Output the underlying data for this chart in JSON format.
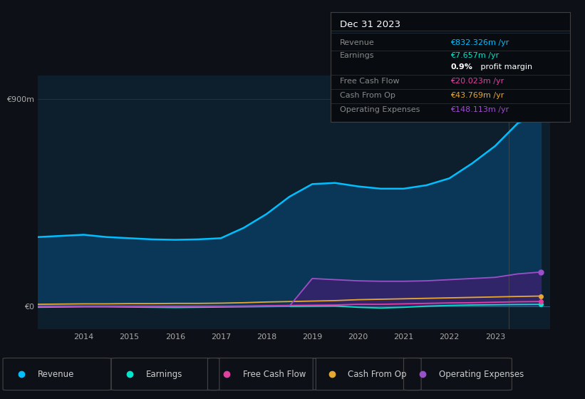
{
  "background_color": "#0d1117",
  "plot_bg_color": "#0d1f2d",
  "years": [
    2013.0,
    2013.5,
    2014.0,
    2014.5,
    2015.0,
    2015.5,
    2016.0,
    2016.5,
    2017.0,
    2017.5,
    2018.0,
    2018.5,
    2019.0,
    2019.5,
    2020.0,
    2020.5,
    2021.0,
    2021.5,
    2022.0,
    2022.5,
    2023.0,
    2023.5,
    2024.0
  ],
  "revenue": [
    300,
    305,
    310,
    300,
    295,
    290,
    288,
    290,
    295,
    340,
    400,
    475,
    530,
    535,
    520,
    510,
    510,
    525,
    555,
    620,
    695,
    795,
    832
  ],
  "earnings": [
    -5,
    -4,
    -3,
    -3,
    -4,
    -5,
    -6,
    -5,
    -4,
    -3,
    -2,
    -1,
    0,
    1,
    -5,
    -8,
    -5,
    0,
    3,
    5,
    6,
    7,
    7.657
  ],
  "free_cash_flow": [
    -2,
    -2,
    -1,
    -1,
    -2,
    -2,
    -2,
    -1,
    -1,
    0,
    2,
    3,
    4,
    5,
    8,
    8,
    10,
    12,
    14,
    15,
    17,
    19,
    20
  ],
  "cash_from_op": [
    8,
    9,
    10,
    10,
    11,
    11,
    12,
    12,
    13,
    15,
    18,
    20,
    22,
    24,
    28,
    30,
    32,
    34,
    36,
    38,
    40,
    42,
    43.769
  ],
  "operating_expenses": [
    0,
    0,
    0,
    0,
    0,
    0,
    0,
    0,
    0,
    0,
    0,
    0,
    120,
    115,
    110,
    108,
    108,
    110,
    115,
    120,
    125,
    140,
    148
  ],
  "revenue_color": "#00bfff",
  "earnings_color": "#00e5cc",
  "free_cash_flow_color": "#e040a0",
  "cash_from_op_color": "#e8a830",
  "operating_expenses_color": "#9b4fc8",
  "revenue_fill_color": "#0a3a5c",
  "operating_expenses_fill_color": "#3d1f6e",
  "ylim_min": -100,
  "ylim_max": 1000,
  "xtick_years": [
    2014,
    2015,
    2016,
    2017,
    2018,
    2019,
    2020,
    2021,
    2022,
    2023
  ],
  "legend_labels": [
    "Revenue",
    "Earnings",
    "Free Cash Flow",
    "Cash From Op",
    "Operating Expenses"
  ],
  "legend_colors": [
    "#00bfff",
    "#00e5cc",
    "#e040a0",
    "#e8a830",
    "#9b4fc8"
  ],
  "info_box": {
    "title": "Dec 31 2023",
    "rows": [
      {
        "label": "Revenue",
        "value": "€832.326m /yr",
        "value_color": "#00bfff"
      },
      {
        "label": "Earnings",
        "value": "€7.657m /yr",
        "value_color": "#00e5cc"
      },
      {
        "label": "",
        "value": "0.9% profit margin",
        "value_color": "#ffffff"
      },
      {
        "label": "Free Cash Flow",
        "value": "€20.023m /yr",
        "value_color": "#e040a0"
      },
      {
        "label": "Cash From Op",
        "value": "€43.769m /yr",
        "value_color": "#e8a830"
      },
      {
        "label": "Operating Expenses",
        "value": "€148.113m /yr",
        "value_color": "#9b4fc8"
      }
    ]
  }
}
